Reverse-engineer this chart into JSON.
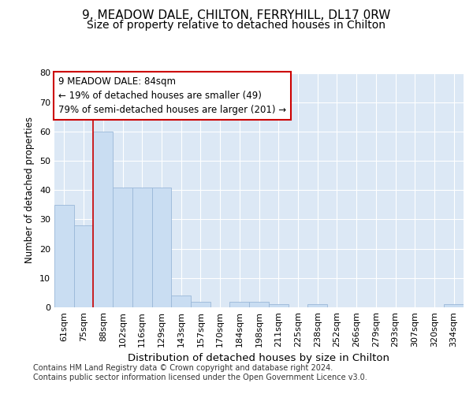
{
  "title_line1": "9, MEADOW DALE, CHILTON, FERRYHILL, DL17 0RW",
  "title_line2": "Size of property relative to detached houses in Chilton",
  "xlabel": "Distribution of detached houses by size in Chilton",
  "ylabel": "Number of detached properties",
  "categories": [
    "61sqm",
    "75sqm",
    "88sqm",
    "102sqm",
    "116sqm",
    "129sqm",
    "143sqm",
    "157sqm",
    "170sqm",
    "184sqm",
    "198sqm",
    "211sqm",
    "225sqm",
    "238sqm",
    "252sqm",
    "266sqm",
    "279sqm",
    "293sqm",
    "307sqm",
    "320sqm",
    "334sqm"
  ],
  "values": [
    35,
    28,
    60,
    41,
    41,
    41,
    4,
    2,
    0,
    2,
    2,
    1,
    0,
    1,
    0,
    0,
    0,
    0,
    0,
    0,
    1
  ],
  "bar_color": "#c9ddf2",
  "bar_edge_color": "#9ab8d8",
  "ylim": [
    0,
    80
  ],
  "yticks": [
    0,
    10,
    20,
    30,
    40,
    50,
    60,
    70,
    80
  ],
  "annotation_line1": "9 MEADOW DALE: 84sqm",
  "annotation_line2": "← 19% of detached houses are smaller (49)",
  "annotation_line3": "79% of semi-detached houses are larger (201) →",
  "annotation_box_color": "#ffffff",
  "annotation_border_color": "#cc0000",
  "redline_x": 1.5,
  "plot_bg_color": "#dce8f5",
  "footer_text": "Contains HM Land Registry data © Crown copyright and database right 2024.\nContains public sector information licensed under the Open Government Licence v3.0.",
  "title_fontsize": 11,
  "subtitle_fontsize": 10,
  "xlabel_fontsize": 9.5,
  "ylabel_fontsize": 8.5,
  "tick_fontsize": 8,
  "footer_fontsize": 7,
  "annotation_fontsize": 8.5
}
